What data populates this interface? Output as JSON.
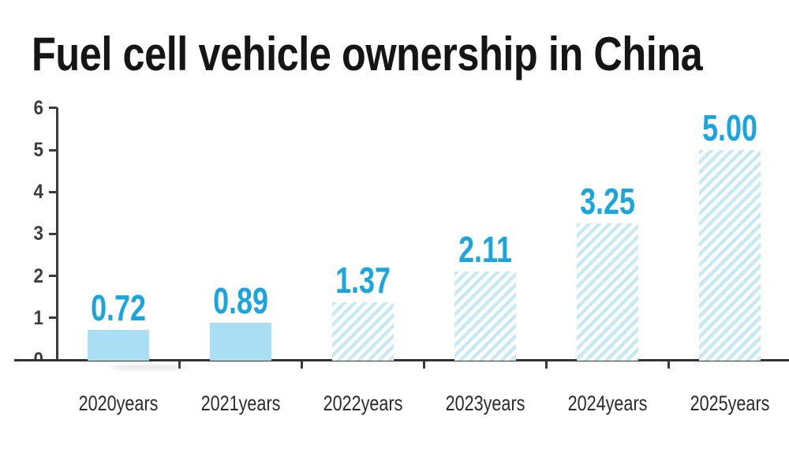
{
  "chart_data": {
    "type": "bar",
    "title": "Fuel cell vehicle ownership in China",
    "categories": [
      "2020years",
      "2021years",
      "2022years",
      "2023years",
      "2024years",
      "2025years"
    ],
    "values": [
      0.72,
      0.89,
      1.37,
      2.11,
      3.25,
      5.0
    ],
    "value_labels": [
      "0.72",
      "0.89",
      "1.37",
      "2.11",
      "3.25",
      "5.00"
    ],
    "bar_styles": [
      "solid",
      "solid",
      "hatch",
      "hatch",
      "hatch",
      "hatch"
    ],
    "xlabel": "",
    "ylabel": "",
    "ylim": [
      0,
      6
    ],
    "yticks": [
      0,
      1,
      2,
      3,
      4,
      5,
      6
    ],
    "grid": false,
    "legend": null,
    "colors": {
      "solid_bar_fill": "#aadef3",
      "hatch_stripe": "#c5eaf4",
      "value_label": "#1ba5de",
      "axis": "#3a3a3a",
      "tick_text": "#3d3d3d",
      "category_text": "#2b2b2b",
      "title_text": "#151515",
      "background": "#ffffff"
    }
  }
}
